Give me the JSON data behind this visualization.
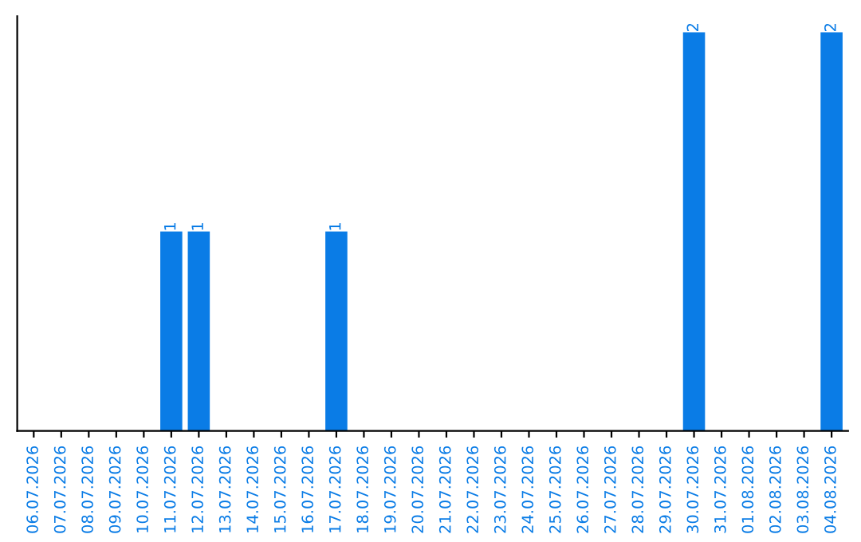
{
  "chart_data": {
    "type": "bar",
    "categories": [
      "06.07.2026",
      "07.07.2026",
      "08.07.2026",
      "09.07.2026",
      "10.07.2026",
      "11.07.2026",
      "12.07.2026",
      "13.07.2026",
      "14.07.2026",
      "15.07.2026",
      "16.07.2026",
      "17.07.2026",
      "18.07.2026",
      "19.07.2026",
      "20.07.2026",
      "21.07.2026",
      "22.07.2026",
      "23.07.2026",
      "24.07.2026",
      "25.07.2026",
      "26.07.2026",
      "27.07.2026",
      "28.07.2026",
      "29.07.2026",
      "30.07.2026",
      "31.07.2026",
      "01.08.2026",
      "02.08.2026",
      "03.08.2026",
      "04.08.2026"
    ],
    "values": [
      0,
      0,
      0,
      0,
      0,
      1,
      1,
      0,
      0,
      0,
      0,
      1,
      0,
      0,
      0,
      0,
      0,
      0,
      0,
      0,
      0,
      0,
      0,
      0,
      2,
      0,
      0,
      0,
      0,
      2
    ],
    "value_labels": [
      null,
      null,
      null,
      null,
      null,
      "1",
      "1",
      null,
      null,
      null,
      null,
      "1",
      null,
      null,
      null,
      null,
      null,
      null,
      null,
      null,
      null,
      null,
      null,
      null,
      "2",
      null,
      null,
      null,
      null,
      "2"
    ],
    "color": "#0a7ce6",
    "tick_labels": "x",
    "grid": false,
    "legend": false
  }
}
